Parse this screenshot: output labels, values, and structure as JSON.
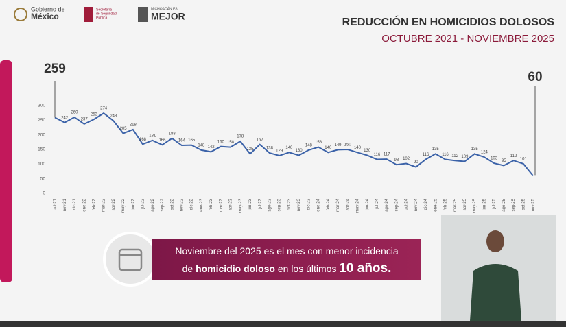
{
  "header": {
    "logos": [
      "Gobierno de",
      "México",
      "Secretaría",
      "de Seguridad",
      "Pública",
      "MICHOACÁN ES",
      "MEJOR"
    ]
  },
  "chart_data": {
    "type": "line",
    "title": "REDUCCIÓN EN HOMICIDIOS DOLOSOS",
    "subtitle": "OCTUBRE 2021 - NOVIEMBRE 2025",
    "categories": [
      "oct-21",
      "nov-21",
      "dic-21",
      "ene-22",
      "feb-22",
      "mar-22",
      "abr-22",
      "may-22",
      "jun-22",
      "jul-22",
      "ago-22",
      "sep-22",
      "oct-22",
      "nov-22",
      "dic-22",
      "ene-23",
      "feb-23",
      "mar-23",
      "abr-23",
      "may-23",
      "jun-23",
      "jul-23",
      "ago-23",
      "sep-23",
      "oct-23",
      "nov-23",
      "dic-23",
      "ene-24",
      "feb-24",
      "mar-24",
      "abr-24",
      "may-24",
      "jun-24",
      "jul-24",
      "ago-24",
      "sep-24",
      "oct-24",
      "nov-24",
      "dic-24",
      "ene-25",
      "feb-25",
      "mar-25",
      "abr-25",
      "may-25",
      "jun-25",
      "jul-25",
      "ago-25",
      "sep-25",
      "oct-25",
      "nov-25"
    ],
    "values": [
      259,
      242,
      260,
      237,
      253,
      274,
      248,
      205,
      218,
      168,
      181,
      166,
      188,
      164,
      165,
      148,
      142,
      160,
      158,
      178,
      135,
      167,
      138,
      129,
      140,
      130,
      148,
      158,
      140,
      149,
      150,
      140,
      130,
      116,
      117,
      98,
      102,
      90,
      116,
      135,
      116,
      112,
      109,
      135,
      124,
      103,
      95,
      112,
      101,
      60
    ],
    "color": "#3b62a8",
    "ylim": [
      0,
      300
    ],
    "yticks": [
      0,
      50,
      100,
      150,
      200,
      250,
      300
    ]
  },
  "banner": {
    "line1": "Noviembre del 2025 es el mes con menor incidencia",
    "line2": [
      "de",
      "homicidio doloso",
      "en los últimos",
      "10 años."
    ]
  }
}
